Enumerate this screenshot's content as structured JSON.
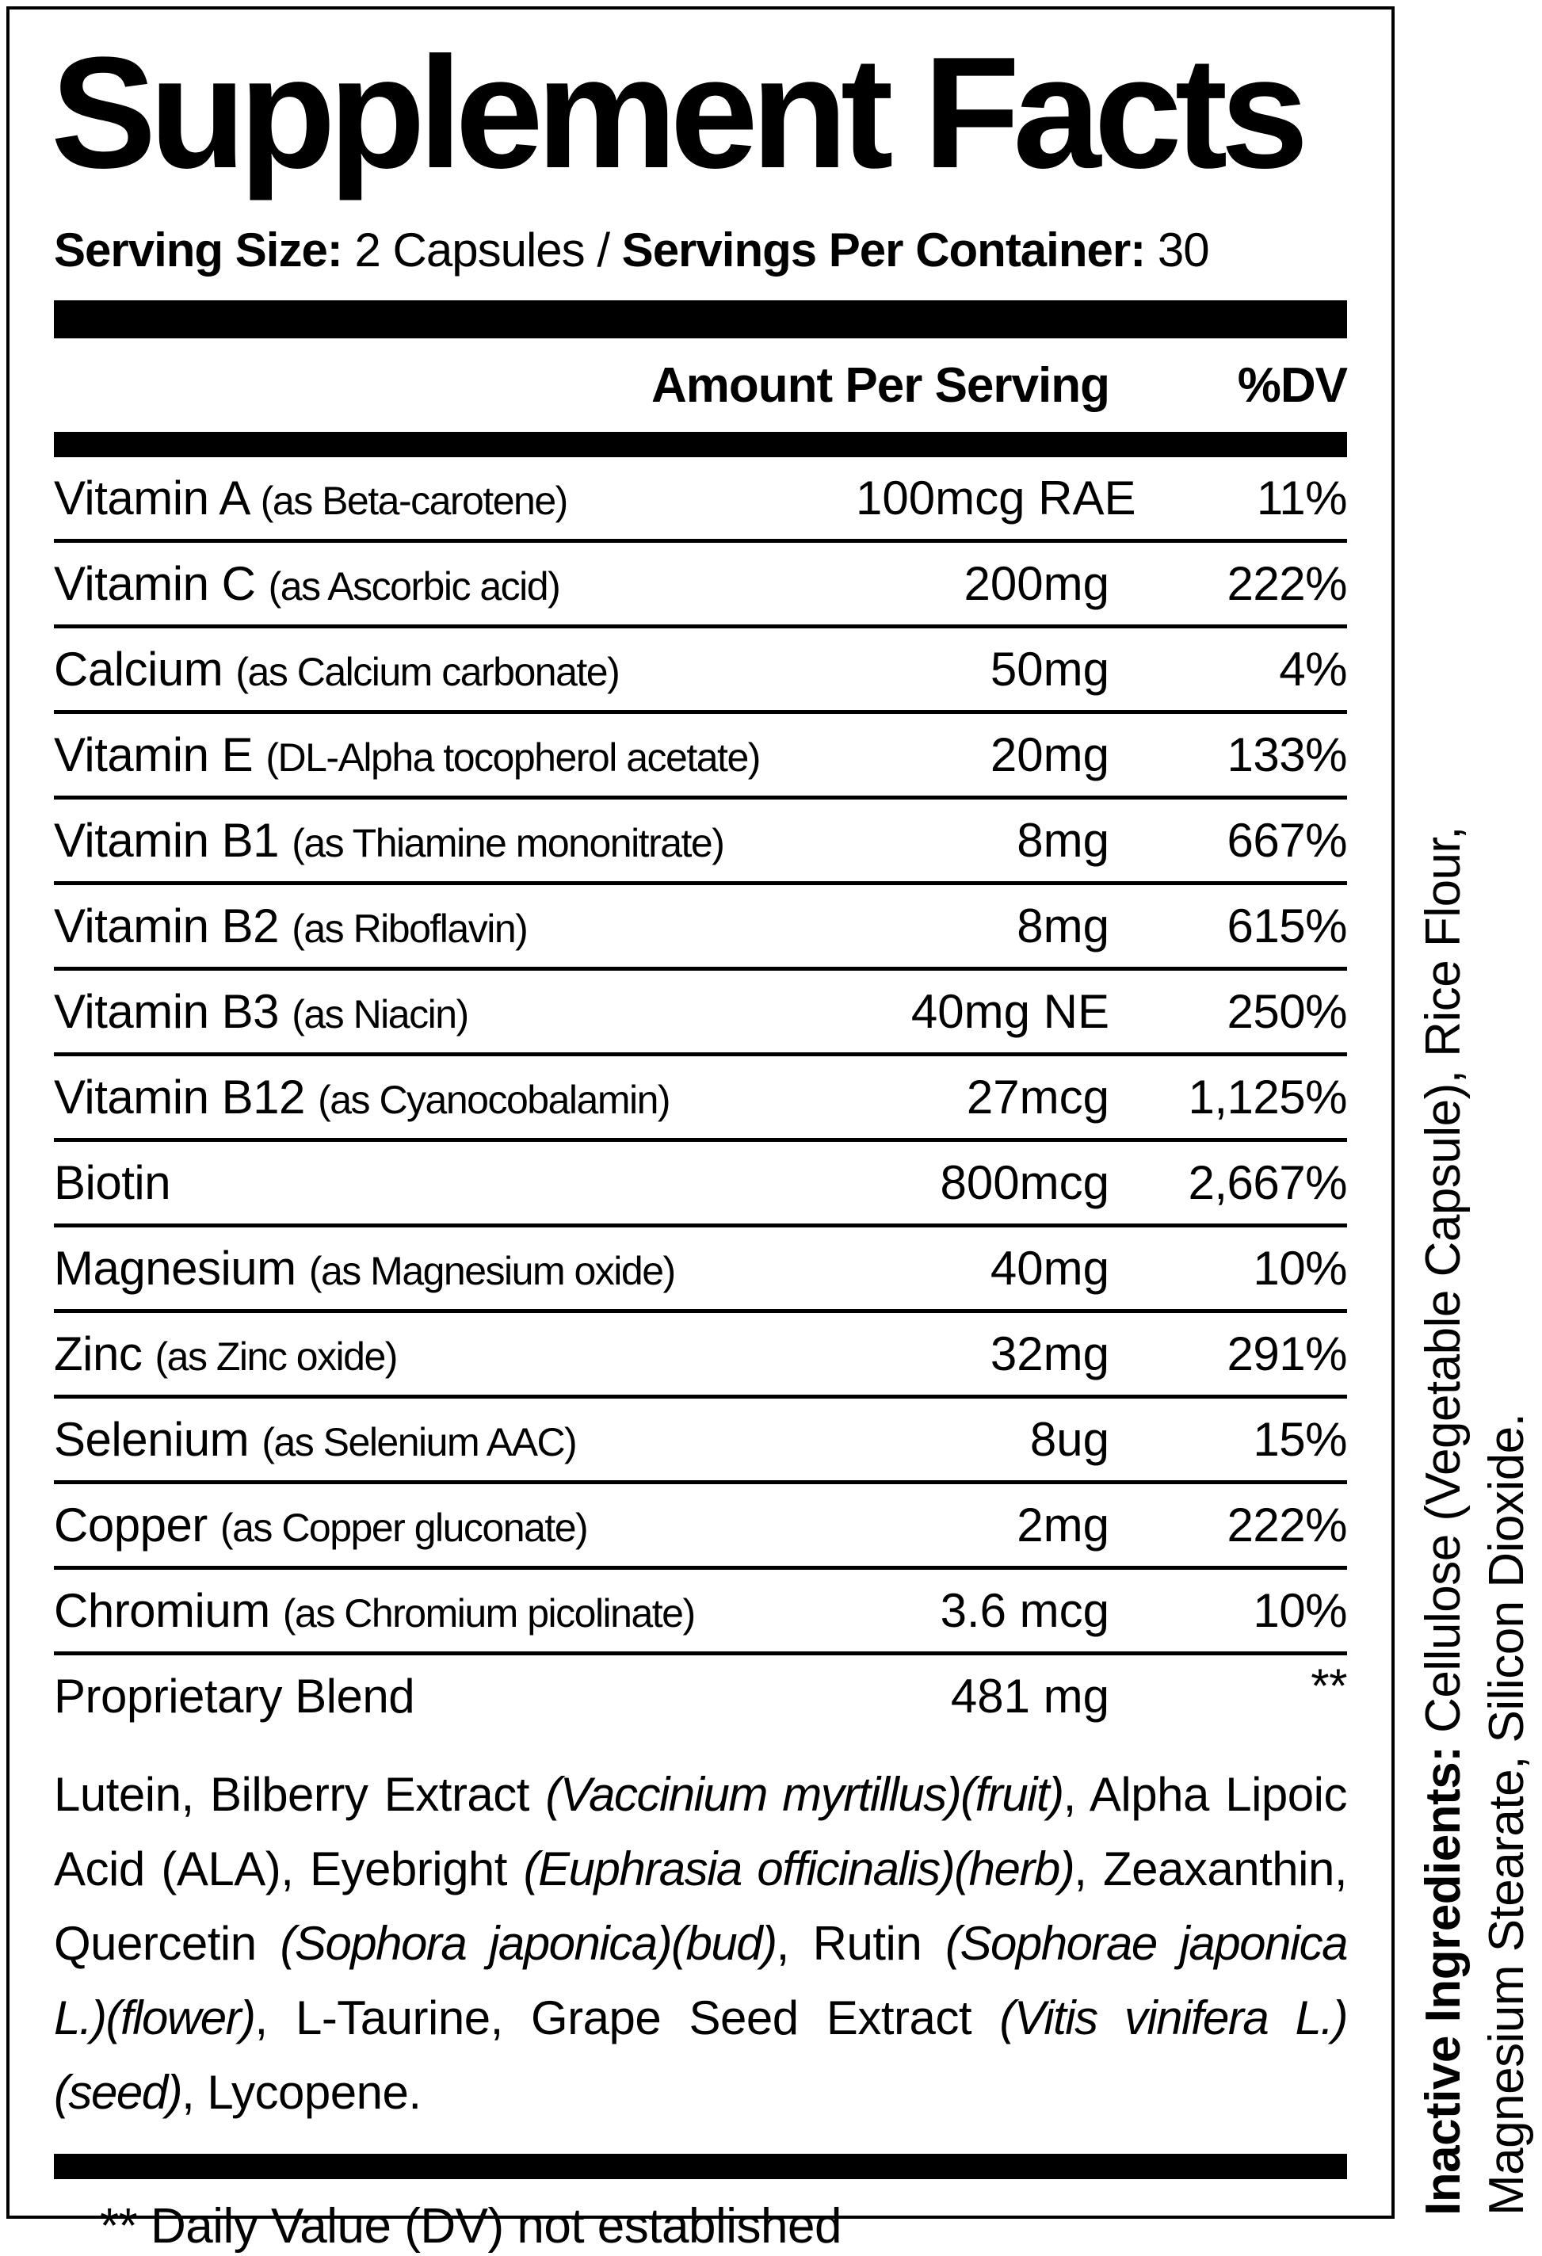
{
  "label": {
    "title": "Supplement Facts",
    "serving": {
      "size_label": "Serving Size: ",
      "size_value": "2 Capsules",
      "separator": " / ",
      "container_label": "Servings Per Container: ",
      "container_value": "30"
    },
    "header": {
      "amount": "Amount Per Serving",
      "dv": "%DV"
    },
    "rows": [
      {
        "name": "Vitamin A",
        "detail": "(as Beta-carotene)",
        "amount": "100mcg RAE",
        "dv": "11%"
      },
      {
        "name": "Vitamin C",
        "detail": "(as Ascorbic acid)",
        "amount": "200mg",
        "dv": "222%"
      },
      {
        "name": "Calcium",
        "detail": "(as Calcium carbonate)",
        "amount": "50mg",
        "dv": "4%"
      },
      {
        "name": "Vitamin E",
        "detail": "(DL-Alpha tocopherol acetate)",
        "amount": "20mg",
        "dv": "133%"
      },
      {
        "name": "Vitamin B1",
        "detail": "(as Thiamine mononitrate)",
        "amount": "8mg",
        "dv": "667%"
      },
      {
        "name": "Vitamin B2",
        "detail": "(as Riboflavin)",
        "amount": "8mg",
        "dv": "615%"
      },
      {
        "name": "Vitamin B3",
        "detail": "(as Niacin)",
        "amount": "40mg NE",
        "dv": "250%"
      },
      {
        "name": "Vitamin B12",
        "detail": "(as Cyanocobalamin)",
        "amount": "27mcg",
        "dv": "1,125%"
      },
      {
        "name": "Biotin",
        "detail": "",
        "amount": "800mcg",
        "dv": "2,667%"
      },
      {
        "name": "Magnesium",
        "detail": "(as Magnesium oxide)",
        "amount": "40mg",
        "dv": "10%"
      },
      {
        "name": "Zinc",
        "detail": "(as Zinc oxide)",
        "amount": "32mg",
        "dv": "291%"
      },
      {
        "name": "Selenium",
        "detail": "(as Selenium AAC)",
        "amount": "8ug",
        "dv": "15%"
      },
      {
        "name": "Copper",
        "detail": "(as Copper gluconate)",
        "amount": "2mg",
        "dv": "222%"
      },
      {
        "name": "Chromium",
        "detail": "(as Chromium picolinate)",
        "amount": "3.6 mcg",
        "dv": "10%"
      },
      {
        "name": "Proprietary Blend",
        "detail": "",
        "amount": "481 mg",
        "dv": "**"
      }
    ],
    "blend": {
      "segments": [
        {
          "text": "Lutein, Bilberry Extract ",
          "italic": false
        },
        {
          "text": "(Vaccinium myrtillus)(fruit)",
          "italic": true
        },
        {
          "text": ", Alpha Lipoic Acid (ALA), Eyebright ",
          "italic": false
        },
        {
          "text": "(Euphrasia officinalis)(herb)",
          "italic": true
        },
        {
          "text": ", Zeaxanthin, Quercetin ",
          "italic": false
        },
        {
          "text": "(Sophora japonica)(bud)",
          "italic": true
        },
        {
          "text": ", Rutin ",
          "italic": false
        },
        {
          "text": "(Sophorae japonica L.)(flower)",
          "italic": true
        },
        {
          "text": ", L-Taurine, Grape Seed Extract ",
          "italic": false
        },
        {
          "text": "(Vitis vinifera L.)(seed)",
          "italic": true
        },
        {
          "text": ", Lycopene.",
          "italic": false
        }
      ]
    },
    "footnote": "** Daily Value (DV) not established",
    "inactive": {
      "label": "Inactive Ingredients: ",
      "line1_rest": "Cellulose (Vegetable Capsule), Rice Flour,",
      "line2": "Magnesium Stearate, Silicon Dioxide."
    },
    "colors": {
      "ink": "#000000",
      "background": "#ffffff"
    }
  }
}
